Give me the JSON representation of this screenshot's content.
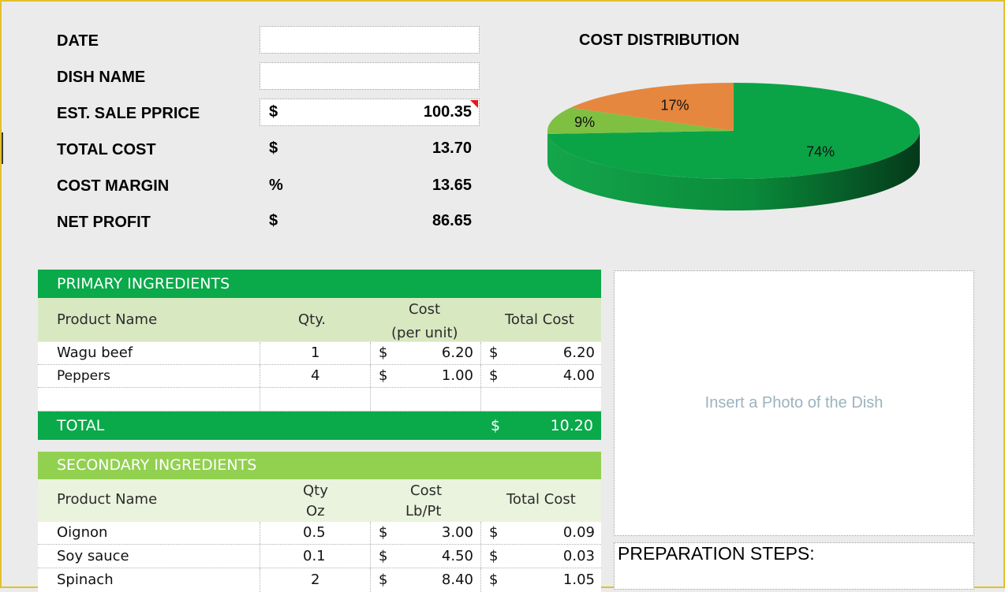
{
  "summary": {
    "date_label": "DATE",
    "dish_name_label": "DISH NAME",
    "est_sale_price_label": "EST. SALE PPRICE",
    "est_sale_price_currency": "$",
    "est_sale_price_value": "100.35",
    "total_cost_label": "TOTAL COST",
    "total_cost_currency": "$",
    "total_cost_value": "13.70",
    "cost_margin_label": "COST MARGIN",
    "cost_margin_unit": "%",
    "cost_margin_value": "13.65",
    "net_profit_label": "NET PROFIT",
    "net_profit_currency": "$",
    "net_profit_value": "86.65",
    "date_value": "",
    "dish_name_value": ""
  },
  "chart_data": {
    "type": "pie",
    "title": "COST DISTRIBUTION",
    "slices": [
      {
        "label": "74%",
        "value": 74,
        "color": "#0aa447"
      },
      {
        "label": "9%",
        "value": 9,
        "color": "#7fc043"
      },
      {
        "label": "17%",
        "value": 17,
        "color": "#e5873f"
      }
    ]
  },
  "primary": {
    "title": "PRIMARY INGREDIENTS",
    "headers": {
      "name": "Product Name",
      "qty": "Qty.",
      "cost_line1": "Cost",
      "cost_line2": "(per unit)",
      "total": "Total Cost"
    },
    "rows": [
      {
        "name": "Wagu beef",
        "qty": "1",
        "cur1": "$",
        "cost": "6.20",
        "cur2": "$",
        "total": "6.20"
      },
      {
        "name": "Peppers",
        "qty": "4",
        "cur1": "$",
        "cost": "1.00",
        "cur2": "$",
        "total": "4.00"
      }
    ],
    "total_label": "TOTAL",
    "total_currency": "$",
    "total_value": "10.20"
  },
  "secondary": {
    "title": "SECONDARY INGREDIENTS",
    "headers": {
      "name": "Product Name",
      "qty_line1": "Qty",
      "qty_line2": "Oz",
      "cost_line1": "Cost",
      "cost_line2": "Lb/Pt",
      "total": "Total Cost"
    },
    "rows": [
      {
        "name": "Oignon",
        "qty": "0.5",
        "cur1": "$",
        "cost": "3.00",
        "cur2": "$",
        "total": "0.09"
      },
      {
        "name": "Soy sauce",
        "qty": "0.1",
        "cur1": "$",
        "cost": "4.50",
        "cur2": "$",
        "total": "0.03"
      },
      {
        "name": "Spinach",
        "qty": "2",
        "cur1": "$",
        "cost": "8.40",
        "cur2": "$",
        "total": "1.05"
      }
    ]
  },
  "photo_placeholder": "Insert a Photo of the Dish",
  "preparation_title": "PREPARATION STEPS:",
  "colors": {
    "dark_green": "#0aa94a",
    "light_green": "#92d050",
    "header_green": "#d8e8c1",
    "header_light": "#eaf3dd",
    "frame": "#e2c12b"
  }
}
